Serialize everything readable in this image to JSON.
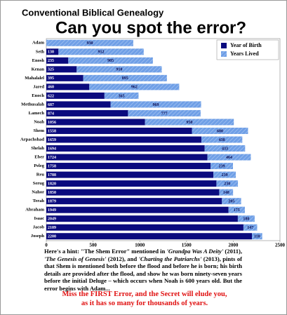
{
  "chart_data": {
    "type": "stacked-bar-horizontal",
    "title": "Conventional Biblical Genealogy",
    "subtitle": "Can you spot the error?",
    "categories": [
      "Adam",
      "Seth",
      "Enosh",
      "Kenan",
      "Mahalalel",
      "Jared",
      "Enoch",
      "Methusalah",
      "Lamech",
      "Noah",
      "Shem",
      "Arpachshad",
      "Shelah",
      "Eber",
      "Peleg",
      "Reu",
      "Serug",
      "Nahor",
      "Terah",
      "Abraham",
      "Isaac",
      "Jacob",
      "Joseph"
    ],
    "series": [
      {
        "name": "Year of Birth",
        "color": "#0b0b7e",
        "values": [
          0,
          130,
          235,
          325,
          395,
          460,
          622,
          687,
          874,
          1056,
          1558,
          1659,
          1694,
          1724,
          1758,
          1788,
          1820,
          1850,
          1879,
          1949,
          2049,
          2109,
          2200
        ]
      },
      {
        "name": "Years Lived",
        "color": "#6f9fe6",
        "values": [
          930,
          912,
          905,
          910,
          895,
          962,
          365,
          969,
          777,
          950,
          600,
          438,
          433,
          464,
          239,
          239,
          230,
          148,
          205,
          175,
          180,
          147,
          110
        ]
      }
    ],
    "xlim": [
      0,
      2500
    ],
    "xticks": [
      0,
      500,
      1000,
      1500,
      2000,
      2500
    ],
    "legend": "top-right",
    "note": [
      "Here's a hint:  \"The Shem Error\" mentioned in ",
      "'Grandpa Was A Deity'",
      " (2011), ",
      "'The Genesis of Genesis'",
      " (2012), and ",
      "'Charting the Patriarchs'",
      " (2013), pints of that Shem is mentioned both before the flood and before he is born; his birth details are provided after the flood, and show he was born ninety-seven years before the initial Deluge – which occurs when Noah is 600 years old.  But the error begins with Adam..."
    ],
    "warning": [
      "Miss the FIRST Error, and the Secret will elude you,",
      "as it has so many for thousands of years."
    ]
  }
}
